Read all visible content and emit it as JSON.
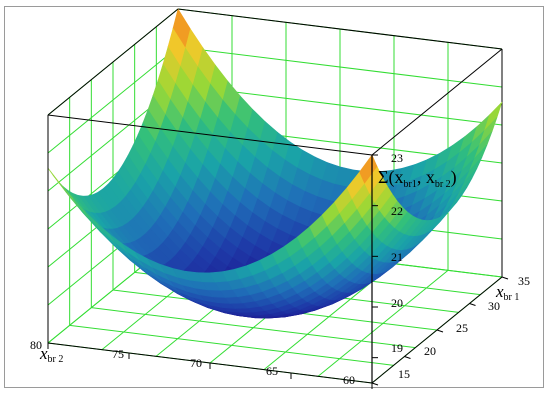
{
  "chart_data": {
    "type": "surface",
    "function_label": {
      "main": "Σ(x",
      "sub1": "br1",
      "mid": ", x",
      "sub2": "br 2",
      "close": ")"
    },
    "x_axis": {
      "label_main": "x",
      "label_sub": "br 2",
      "range": [
        60,
        80
      ],
      "ticks": [
        "80",
        "75",
        "70",
        "65",
        "60"
      ]
    },
    "y_axis": {
      "label_main": "x",
      "label_sub": "br 1",
      "range": [
        15,
        35
      ],
      "ticks": [
        "15",
        "20",
        "25",
        "30",
        "35"
      ]
    },
    "z_axis": {
      "range": [
        18.5,
        23
      ],
      "ticks": [
        "19",
        "20",
        "21",
        "22",
        "23"
      ]
    },
    "surface": {
      "shape": "upward paraboloid",
      "minimum_z": 18.5,
      "max_corner_z": 23,
      "colormap": [
        "#1b0f8a",
        "#1e3aa8",
        "#1f6fb8",
        "#1aa3a8",
        "#33c07a",
        "#9ad836",
        "#f0c92a",
        "#f26a1b"
      ]
    },
    "grid": true,
    "grid_color": "#33dd33"
  }
}
